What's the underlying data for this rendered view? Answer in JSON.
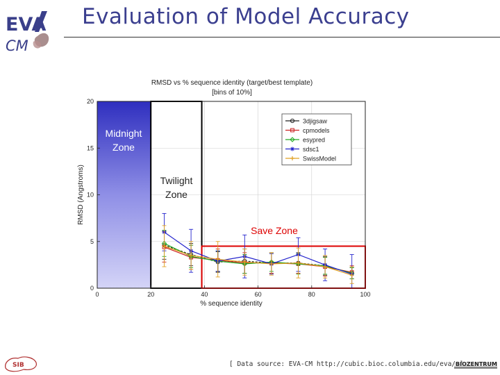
{
  "slide": {
    "title": "Evaluation of Model Accuracy",
    "logo_text_top": "EVA",
    "logo_text_bottom": "CM",
    "footer_source": "[ Data source: EVA-CM http://cubic.bioc.columbia.edu/eva/ ]",
    "sib_logo_text": "SIB",
    "biozentrum_logo_text": "BIOZENTRUM"
  },
  "chart_data": {
    "type": "line",
    "title_line1": "RMSD vs % sequence identity (target/best template)",
    "title_line2": "[bins of 10%]",
    "xlabel": "% sequence identity",
    "ylabel": "RMSD (Angstroms)",
    "xlim": [
      0,
      100
    ],
    "ylim": [
      0,
      20
    ],
    "xticks": [
      0,
      20,
      40,
      60,
      80,
      100
    ],
    "yticks": [
      0,
      5,
      10,
      15,
      20
    ],
    "zones": [
      {
        "label_line1": "Midnight",
        "label_line2": "Zone",
        "x_range": [
          0,
          20
        ],
        "color": "#3434c8"
      },
      {
        "label_line1": "Twilight",
        "label_line2": "Zone",
        "x_range": [
          20,
          39
        ],
        "color": "#000000"
      },
      {
        "label_line1": "Save Zone",
        "label_line2": "",
        "x_range": [
          39,
          100
        ],
        "y_range": [
          0,
          4.5
        ],
        "color": "#dd0000"
      }
    ],
    "series": [
      {
        "name": "3djigsaw",
        "color": "#222222",
        "marker": "o",
        "x": [
          25,
          35,
          45,
          55,
          65,
          75,
          85,
          95
        ],
        "y": [
          4.6,
          3.6,
          2.8,
          2.9,
          2.7,
          2.7,
          2.4,
          1.6
        ],
        "err": [
          1.5,
          1.2,
          1.1,
          1.3,
          1.1,
          1.1,
          1.0,
          0.6
        ]
      },
      {
        "name": "cpmodels",
        "color": "#cc2222",
        "marker": "s",
        "x": [
          25,
          35,
          45,
          55,
          65,
          75,
          85,
          95
        ],
        "y": [
          4.4,
          3.3,
          3.0,
          2.7,
          2.7,
          2.6,
          2.3,
          1.7
        ],
        "err": [
          1.6,
          1.3,
          1.2,
          1.1,
          1.1,
          1.0,
          1.0,
          0.7
        ]
      },
      {
        "name": "esypred",
        "color": "#22aa22",
        "marker": "d",
        "x": [
          25,
          35,
          45,
          55,
          65,
          75,
          85,
          95
        ],
        "y": [
          4.8,
          3.4,
          2.9,
          2.6,
          2.8,
          2.6,
          2.4,
          1.6
        ],
        "err": [
          1.4,
          1.2,
          1.1,
          1.0,
          1.0,
          1.1,
          0.9,
          0.6
        ]
      },
      {
        "name": "sdsc1",
        "color": "#2222cc",
        "marker": "*",
        "x": [
          25,
          35,
          45,
          55,
          65,
          75,
          85,
          95
        ],
        "y": [
          6.0,
          4.0,
          2.9,
          3.4,
          2.6,
          3.6,
          2.5,
          1.5
        ],
        "err": [
          2.0,
          2.3,
          1.1,
          2.3,
          1.1,
          1.8,
          1.7,
          2.1
        ]
      },
      {
        "name": "SwissModel",
        "color": "#e0a020",
        "marker": "+",
        "x": [
          25,
          35,
          45,
          55,
          65,
          75,
          85,
          95
        ],
        "y": [
          4.5,
          3.5,
          3.1,
          2.8,
          2.6,
          2.7,
          2.3,
          1.4
        ],
        "err": [
          2.2,
          1.5,
          1.9,
          1.4,
          1.2,
          1.6,
          1.2,
          0.9
        ]
      }
    ]
  }
}
